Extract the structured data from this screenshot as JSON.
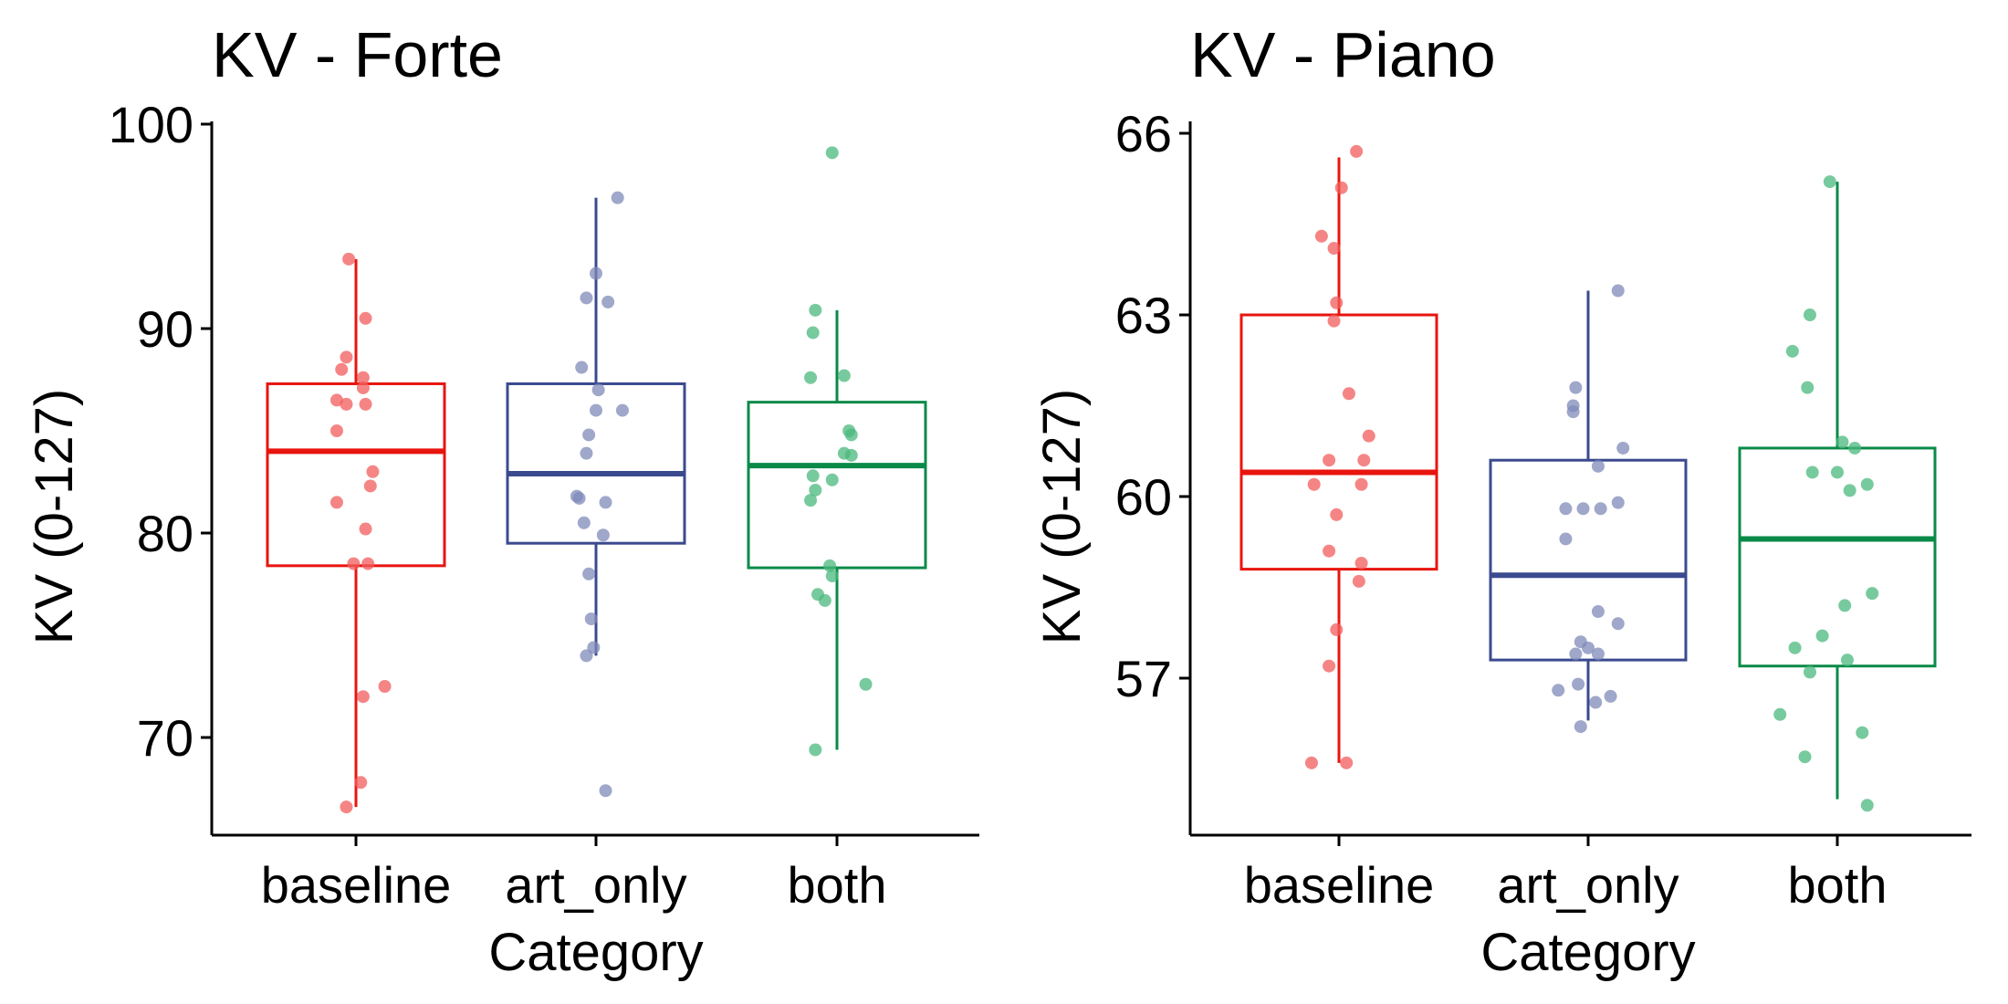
{
  "chart_data": [
    {
      "type": "box",
      "title": "KV - Forte",
      "xlabel": "Category",
      "ylabel": "KV (0-127)",
      "categories": [
        "baseline",
        "art_only",
        "both"
      ],
      "ylim": [
        65,
        100
      ],
      "yticks": [
        70,
        80,
        90,
        100
      ],
      "grid": false,
      "legend": "none",
      "colors": [
        "#e8150f",
        "#3b4a8f",
        "#0a8a48"
      ],
      "point_colors": [
        "#f25c5c",
        "#7f8ab8",
        "#4ab87c"
      ],
      "boxes": [
        {
          "category": "baseline",
          "whisker_low": 66.6,
          "q1": 78.4,
          "median": 84.0,
          "q3": 87.3,
          "whisker_high": 93.4
        },
        {
          "category": "art_only",
          "whisker_low": 74.0,
          "q1": 79.5,
          "median": 82.9,
          "q3": 87.3,
          "whisker_high": 96.4
        },
        {
          "category": "both",
          "whisker_low": 69.4,
          "q1": 78.3,
          "median": 83.3,
          "q3": 86.4,
          "whisker_high": 90.9
        }
      ],
      "points": [
        [
          [
            -0.03,
            93.4
          ],
          [
            0.04,
            90.5
          ],
          [
            -0.04,
            88.6
          ],
          [
            -0.06,
            88.0
          ],
          [
            0.03,
            87.6
          ],
          [
            -0.08,
            86.5
          ],
          [
            -0.04,
            86.3
          ],
          [
            0.04,
            86.3
          ],
          [
            0.03,
            87.1
          ],
          [
            -0.08,
            85.0
          ],
          [
            0.07,
            83.0
          ],
          [
            0.06,
            82.3
          ],
          [
            -0.08,
            81.5
          ],
          [
            0.04,
            80.2
          ],
          [
            -0.01,
            78.5
          ],
          [
            0.05,
            78.5
          ],
          [
            0.12,
            72.5
          ],
          [
            0.03,
            72.0
          ],
          [
            0.02,
            67.8
          ],
          [
            -0.04,
            66.6
          ]
        ],
        [
          [
            0.09,
            96.4
          ],
          [
            0.0,
            92.7
          ],
          [
            -0.04,
            91.5
          ],
          [
            0.05,
            91.3
          ],
          [
            -0.06,
            88.1
          ],
          [
            0.01,
            87.0
          ],
          [
            0.0,
            86.0
          ],
          [
            0.11,
            86.0
          ],
          [
            -0.03,
            84.8
          ],
          [
            -0.04,
            83.9
          ],
          [
            -0.08,
            81.8
          ],
          [
            -0.07,
            81.7
          ],
          [
            0.04,
            81.5
          ],
          [
            -0.05,
            80.5
          ],
          [
            0.03,
            79.9
          ],
          [
            -0.03,
            78.0
          ],
          [
            -0.02,
            75.8
          ],
          [
            -0.01,
            74.4
          ],
          [
            -0.04,
            74.0
          ],
          [
            0.04,
            67.4
          ]
        ],
        [
          [
            -0.02,
            98.6
          ],
          [
            -0.09,
            90.9
          ],
          [
            -0.1,
            89.8
          ],
          [
            -0.11,
            87.6
          ],
          [
            0.03,
            87.7
          ],
          [
            0.05,
            85.0
          ],
          [
            0.06,
            84.8
          ],
          [
            0.03,
            83.9
          ],
          [
            0.06,
            83.8
          ],
          [
            -0.1,
            82.8
          ],
          [
            -0.02,
            82.6
          ],
          [
            -0.09,
            82.1
          ],
          [
            -0.11,
            81.6
          ],
          [
            -0.03,
            78.4
          ],
          [
            -0.02,
            77.9
          ],
          [
            -0.08,
            77.0
          ],
          [
            -0.05,
            76.7
          ],
          [
            0.12,
            72.6
          ],
          [
            -0.09,
            69.4
          ]
        ]
      ]
    },
    {
      "type": "box",
      "title": "KV - Piano",
      "xlabel": "Category",
      "ylabel": "KV (0-127)",
      "categories": [
        "baseline",
        "art_only",
        "both"
      ],
      "ylim": [
        54.4,
        66.2
      ],
      "yticks": [
        57,
        60,
        63,
        66
      ],
      "grid": false,
      "legend": "none",
      "colors": [
        "#e8150f",
        "#3b4a8f",
        "#0a8a48"
      ],
      "point_colors": [
        "#f25c5c",
        "#7f8ab8",
        "#4ab87c"
      ],
      "boxes": [
        {
          "category": "baseline",
          "whisker_low": 55.6,
          "q1": 58.8,
          "median": 60.4,
          "q3": 63.0,
          "whisker_high": 65.6
        },
        {
          "category": "art_only",
          "whisker_low": 56.3,
          "q1": 57.3,
          "median": 58.7,
          "q3": 60.6,
          "whisker_high": 63.4
        },
        {
          "category": "both",
          "whisker_low": 55.0,
          "q1": 57.2,
          "median": 59.3,
          "q3": 60.8,
          "whisker_high": 65.2
        }
      ],
      "points": [
        [
          [
            0.07,
            65.7
          ],
          [
            0.01,
            65.1
          ],
          [
            -0.07,
            64.3
          ],
          [
            -0.02,
            64.1
          ],
          [
            -0.01,
            63.2
          ],
          [
            -0.02,
            62.9
          ],
          [
            0.04,
            61.7
          ],
          [
            0.12,
            61.0
          ],
          [
            -0.04,
            60.6
          ],
          [
            0.1,
            60.6
          ],
          [
            -0.1,
            60.2
          ],
          [
            0.09,
            60.2
          ],
          [
            -0.01,
            59.7
          ],
          [
            -0.04,
            59.1
          ],
          [
            0.09,
            58.9
          ],
          [
            0.08,
            58.6
          ],
          [
            -0.01,
            57.8
          ],
          [
            -0.04,
            57.2
          ],
          [
            -0.11,
            55.6
          ],
          [
            0.03,
            55.6
          ]
        ],
        [
          [
            0.12,
            63.4
          ],
          [
            -0.05,
            61.8
          ],
          [
            -0.06,
            61.5
          ],
          [
            -0.06,
            61.4
          ],
          [
            0.14,
            60.8
          ],
          [
            0.04,
            60.5
          ],
          [
            -0.09,
            59.8
          ],
          [
            -0.02,
            59.8
          ],
          [
            0.05,
            59.8
          ],
          [
            0.12,
            59.9
          ],
          [
            -0.09,
            59.3
          ],
          [
            0.04,
            58.1
          ],
          [
            0.12,
            57.9
          ],
          [
            -0.03,
            57.6
          ],
          [
            0.0,
            57.5
          ],
          [
            -0.05,
            57.4
          ],
          [
            0.04,
            57.4
          ],
          [
            -0.12,
            56.8
          ],
          [
            -0.04,
            56.9
          ],
          [
            0.03,
            56.6
          ],
          [
            0.09,
            56.7
          ],
          [
            -0.03,
            56.2
          ]
        ],
        [
          [
            -0.03,
            65.2
          ],
          [
            -0.11,
            63.0
          ],
          [
            -0.18,
            62.4
          ],
          [
            -0.12,
            61.8
          ],
          [
            0.02,
            60.9
          ],
          [
            0.07,
            60.8
          ],
          [
            -0.1,
            60.4
          ],
          [
            0.0,
            60.4
          ],
          [
            0.05,
            60.1
          ],
          [
            0.12,
            60.2
          ],
          [
            0.14,
            58.4
          ],
          [
            0.03,
            58.2
          ],
          [
            -0.06,
            57.7
          ],
          [
            -0.17,
            57.5
          ],
          [
            -0.11,
            57.1
          ],
          [
            0.04,
            57.3
          ],
          [
            -0.23,
            56.4
          ],
          [
            0.1,
            56.1
          ],
          [
            -0.13,
            55.7
          ],
          [
            0.12,
            54.9
          ]
        ]
      ]
    }
  ]
}
